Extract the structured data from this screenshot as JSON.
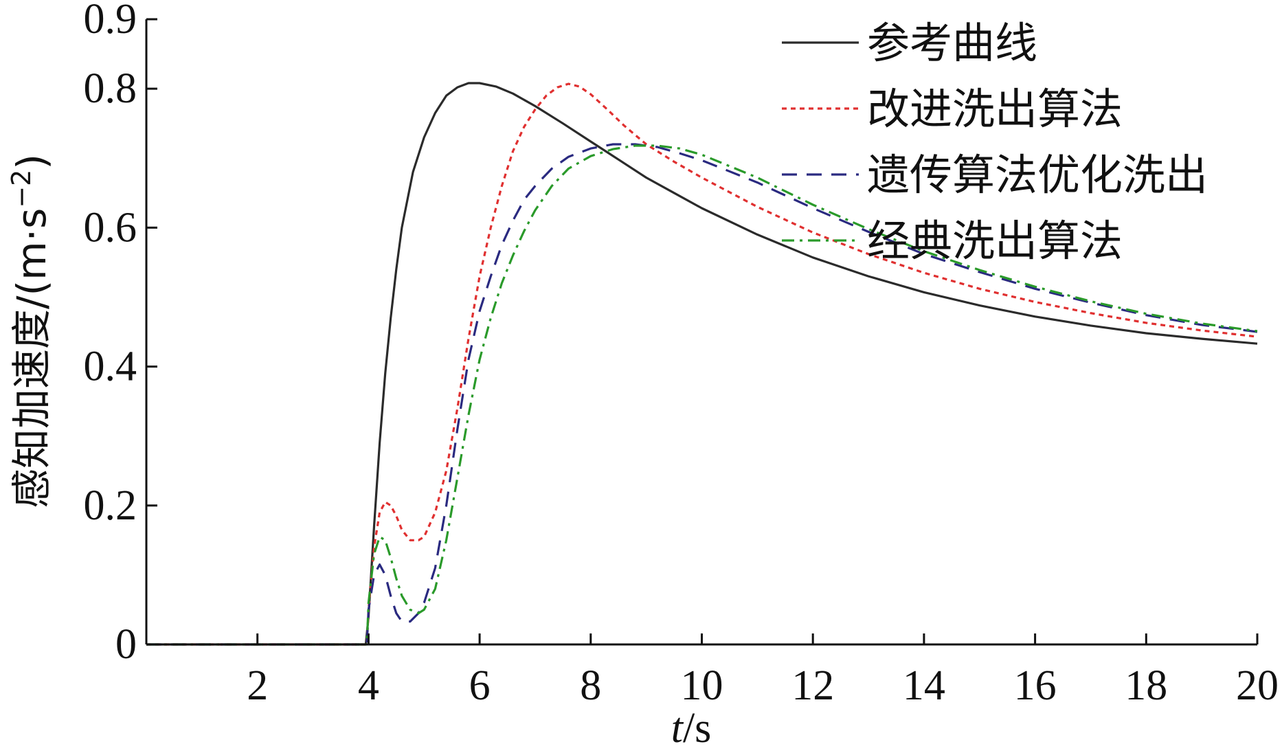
{
  "chart_data": {
    "type": "line",
    "xlabel_italic": "t",
    "xlabel_unit": "/s",
    "ylabel": "感知加速度/(m·s",
    "ylabel_sup": "−2",
    "ylabel_close": ")",
    "xlim": [
      0,
      20
    ],
    "ylim": [
      0,
      0.9
    ],
    "x_ticks": [
      2,
      4,
      6,
      8,
      10,
      12,
      14,
      16,
      18,
      20
    ],
    "y_ticks": [
      {
        "value": 0,
        "label": "0"
      },
      {
        "value": 0.2,
        "label": "0.2"
      },
      {
        "value": 0.4,
        "label": "0.4"
      },
      {
        "value": 0.6,
        "label": "0.6"
      },
      {
        "value": 0.8,
        "label": "0.8"
      },
      {
        "value": 0.9,
        "label": "0.9"
      }
    ],
    "grid": false,
    "legend_position": "top-right",
    "series": [
      {
        "name": "参考曲线",
        "color": "#2b2b2b",
        "dash": "solid",
        "points": [
          [
            0,
            0
          ],
          [
            3.95,
            0
          ],
          [
            4.0,
            0.04
          ],
          [
            4.1,
            0.17
          ],
          [
            4.2,
            0.29
          ],
          [
            4.3,
            0.39
          ],
          [
            4.4,
            0.47
          ],
          [
            4.5,
            0.54
          ],
          [
            4.6,
            0.6
          ],
          [
            4.8,
            0.68
          ],
          [
            5.0,
            0.73
          ],
          [
            5.2,
            0.765
          ],
          [
            5.4,
            0.79
          ],
          [
            5.6,
            0.802
          ],
          [
            5.8,
            0.808
          ],
          [
            6.0,
            0.808
          ],
          [
            6.3,
            0.803
          ],
          [
            6.6,
            0.793
          ],
          [
            7.0,
            0.775
          ],
          [
            7.5,
            0.75
          ],
          [
            8.0,
            0.724
          ],
          [
            8.5,
            0.698
          ],
          [
            9.0,
            0.672
          ],
          [
            9.5,
            0.65
          ],
          [
            10.0,
            0.628
          ],
          [
            11.0,
            0.59
          ],
          [
            12.0,
            0.557
          ],
          [
            13.0,
            0.53
          ],
          [
            14.0,
            0.507
          ],
          [
            15.0,
            0.488
          ],
          [
            16.0,
            0.472
          ],
          [
            17.0,
            0.459
          ],
          [
            18.0,
            0.448
          ],
          [
            19.0,
            0.44
          ],
          [
            20.0,
            0.433
          ]
        ]
      },
      {
        "name": "改进洗出算法",
        "color": "#e03030",
        "dash": "dotted",
        "points": [
          [
            0,
            0
          ],
          [
            3.97,
            0
          ],
          [
            4.0,
            0.05
          ],
          [
            4.1,
            0.14
          ],
          [
            4.2,
            0.19
          ],
          [
            4.3,
            0.205
          ],
          [
            4.4,
            0.2
          ],
          [
            4.5,
            0.185
          ],
          [
            4.6,
            0.165
          ],
          [
            4.75,
            0.15
          ],
          [
            4.9,
            0.15
          ],
          [
            5.0,
            0.155
          ],
          [
            5.2,
            0.19
          ],
          [
            5.4,
            0.25
          ],
          [
            5.6,
            0.34
          ],
          [
            5.8,
            0.44
          ],
          [
            6.0,
            0.53
          ],
          [
            6.2,
            0.6
          ],
          [
            6.4,
            0.66
          ],
          [
            6.6,
            0.71
          ],
          [
            6.8,
            0.745
          ],
          [
            7.0,
            0.77
          ],
          [
            7.2,
            0.79
          ],
          [
            7.4,
            0.802
          ],
          [
            7.6,
            0.807
          ],
          [
            7.8,
            0.803
          ],
          [
            8.0,
            0.792
          ],
          [
            8.3,
            0.77
          ],
          [
            8.6,
            0.747
          ],
          [
            9.0,
            0.72
          ],
          [
            9.5,
            0.695
          ],
          [
            10.0,
            0.672
          ],
          [
            11.0,
            0.63
          ],
          [
            12.0,
            0.593
          ],
          [
            13.0,
            0.562
          ],
          [
            14.0,
            0.535
          ],
          [
            15.0,
            0.512
          ],
          [
            16.0,
            0.493
          ],
          [
            17.0,
            0.477
          ],
          [
            18.0,
            0.463
          ],
          [
            19.0,
            0.452
          ],
          [
            20.0,
            0.443
          ]
        ]
      },
      {
        "name": "遗传算法优化洗出",
        "color": "#2a2a80",
        "dash": "dashed",
        "points": [
          [
            0,
            0
          ],
          [
            3.97,
            0
          ],
          [
            4.0,
            0.05
          ],
          [
            4.1,
            0.1
          ],
          [
            4.2,
            0.115
          ],
          [
            4.3,
            0.1
          ],
          [
            4.4,
            0.07
          ],
          [
            4.5,
            0.045
          ],
          [
            4.6,
            0.033
          ],
          [
            4.75,
            0.033
          ],
          [
            4.9,
            0.045
          ],
          [
            5.0,
            0.06
          ],
          [
            5.2,
            0.11
          ],
          [
            5.4,
            0.2
          ],
          [
            5.6,
            0.31
          ],
          [
            5.8,
            0.41
          ],
          [
            6.0,
            0.48
          ],
          [
            6.2,
            0.53
          ],
          [
            6.4,
            0.575
          ],
          [
            6.6,
            0.61
          ],
          [
            6.8,
            0.64
          ],
          [
            7.0,
            0.66
          ],
          [
            7.3,
            0.685
          ],
          [
            7.6,
            0.702
          ],
          [
            8.0,
            0.714
          ],
          [
            8.4,
            0.72
          ],
          [
            8.8,
            0.72
          ],
          [
            9.2,
            0.716
          ],
          [
            9.6,
            0.707
          ],
          [
            10.0,
            0.697
          ],
          [
            11.0,
            0.665
          ],
          [
            12.0,
            0.628
          ],
          [
            13.0,
            0.594
          ],
          [
            14.0,
            0.562
          ],
          [
            15.0,
            0.536
          ],
          [
            16.0,
            0.512
          ],
          [
            17.0,
            0.492
          ],
          [
            18.0,
            0.474
          ],
          [
            19.0,
            0.46
          ],
          [
            20.0,
            0.45
          ]
        ]
      },
      {
        "name": "经典洗出算法",
        "color": "#2a9a2a",
        "dash": "dashdot",
        "points": [
          [
            0,
            0
          ],
          [
            3.97,
            0
          ],
          [
            4.0,
            0.06
          ],
          [
            4.1,
            0.13
          ],
          [
            4.2,
            0.155
          ],
          [
            4.3,
            0.15
          ],
          [
            4.4,
            0.125
          ],
          [
            4.5,
            0.095
          ],
          [
            4.6,
            0.07
          ],
          [
            4.75,
            0.05
          ],
          [
            4.9,
            0.045
          ],
          [
            5.0,
            0.05
          ],
          [
            5.2,
            0.08
          ],
          [
            5.4,
            0.15
          ],
          [
            5.6,
            0.24
          ],
          [
            5.8,
            0.33
          ],
          [
            6.0,
            0.41
          ],
          [
            6.2,
            0.47
          ],
          [
            6.4,
            0.52
          ],
          [
            6.6,
            0.56
          ],
          [
            6.8,
            0.595
          ],
          [
            7.0,
            0.625
          ],
          [
            7.3,
            0.66
          ],
          [
            7.6,
            0.685
          ],
          [
            8.0,
            0.703
          ],
          [
            8.4,
            0.713
          ],
          [
            8.8,
            0.718
          ],
          [
            9.2,
            0.718
          ],
          [
            9.6,
            0.714
          ],
          [
            10.0,
            0.705
          ],
          [
            11.0,
            0.672
          ],
          [
            12.0,
            0.633
          ],
          [
            13.0,
            0.598
          ],
          [
            14.0,
            0.566
          ],
          [
            15.0,
            0.539
          ],
          [
            16.0,
            0.515
          ],
          [
            17.0,
            0.494
          ],
          [
            18.0,
            0.476
          ],
          [
            19.0,
            0.462
          ],
          [
            20.0,
            0.451
          ]
        ]
      }
    ]
  }
}
